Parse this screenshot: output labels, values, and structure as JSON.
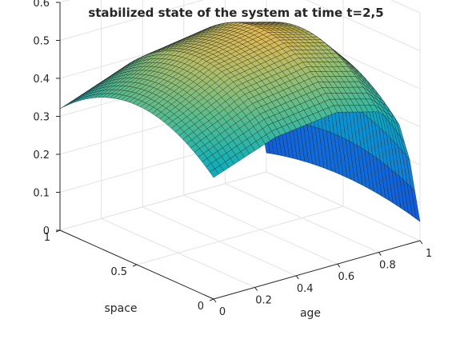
{
  "chart_data": {
    "type": "surface",
    "title": "stabilized state of the system at time t=2,5",
    "xlabel": "age",
    "ylabel": "space",
    "zlabel": "",
    "xlim": [
      0,
      1
    ],
    "ylim": [
      0,
      1
    ],
    "zlim": [
      0,
      0.6
    ],
    "x_ticks": [
      "0",
      "0.2",
      "0.4",
      "0.6",
      "0.8",
      "1"
    ],
    "y_ticks": [
      "0",
      "0.5",
      "1"
    ],
    "z_ticks": [
      "0",
      "0.1",
      "0.2",
      "0.3",
      "0.4",
      "0.5",
      "0.6"
    ],
    "grid": true,
    "colormap": "parula",
    "surface_profile": {
      "age": [
        0,
        0.3,
        0.6,
        0.8,
        0.9,
        0.95,
        1.0
      ],
      "value_at_space_0_5": [
        0.42,
        0.5,
        0.53,
        0.5,
        0.44,
        0.3,
        0.08
      ],
      "value_at_space_edges": [
        0.32,
        0.38,
        0.4,
        0.37,
        0.32,
        0.22,
        0.05
      ],
      "space_curvature": "peaked at space 0.5, lower toward space 0 and 1"
    }
  }
}
